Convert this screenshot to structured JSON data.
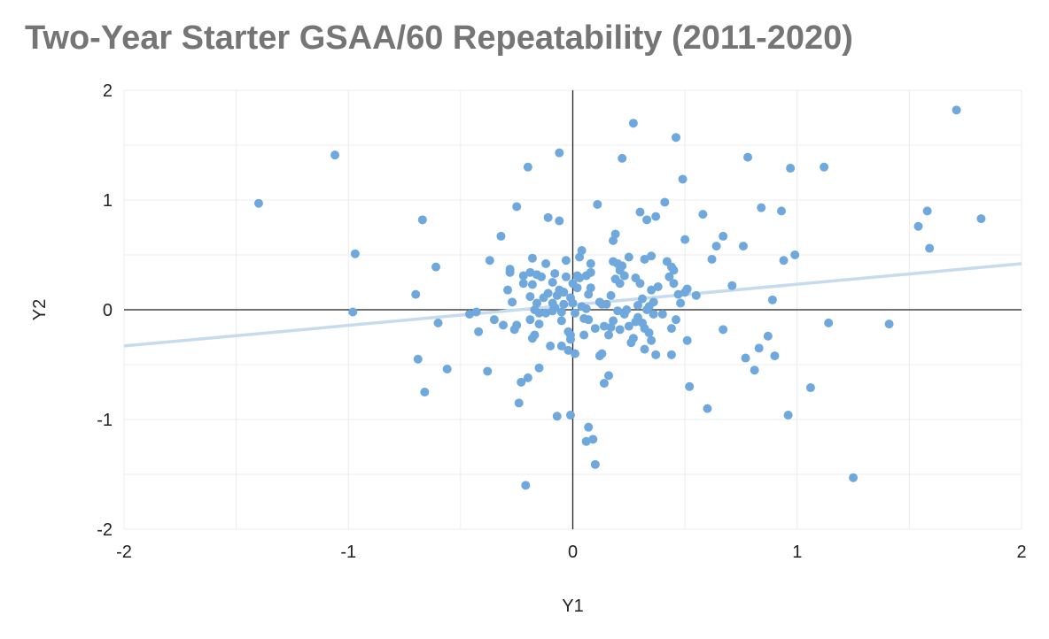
{
  "chart_data": {
    "type": "scatter",
    "title": "Two-Year Starter GSAA/60 Repeatability (2011-2020)",
    "xlabel": "Y1",
    "ylabel": "Y2",
    "xlim": [
      -2,
      2
    ],
    "ylim": [
      -2,
      2
    ],
    "x_ticks": [
      "-2",
      "-1",
      "0",
      "1",
      "2"
    ],
    "y_ticks": [
      "2",
      "1",
      "0",
      "-1",
      "-2"
    ],
    "grid": true,
    "legend": "none",
    "point_color": "#6fa8dc",
    "trendline_color": "#c6dbee",
    "trendline": {
      "x": [
        -2,
        2
      ],
      "y": [
        -0.33,
        0.42
      ]
    },
    "points": [
      [
        -1.4,
        0.97
      ],
      [
        -1.06,
        1.41
      ],
      [
        -0.97,
        0.51
      ],
      [
        -0.98,
        -0.02
      ],
      [
        -0.7,
        0.14
      ],
      [
        -0.69,
        -0.45
      ],
      [
        -0.67,
        0.82
      ],
      [
        -0.66,
        -0.75
      ],
      [
        -0.61,
        0.39
      ],
      [
        -0.6,
        -0.12
      ],
      [
        -0.56,
        -0.54
      ],
      [
        -0.46,
        -0.04
      ],
      [
        -0.43,
        -0.02
      ],
      [
        -0.42,
        -0.2
      ],
      [
        -0.38,
        -0.56
      ],
      [
        -0.37,
        0.45
      ],
      [
        -0.35,
        -0.09
      ],
      [
        -0.32,
        0.67
      ],
      [
        -0.31,
        -0.14
      ],
      [
        -0.29,
        0.18
      ],
      [
        -0.28,
        0.37
      ],
      [
        -0.28,
        0.34
      ],
      [
        -0.27,
        0.07
      ],
      [
        -0.26,
        -0.18
      ],
      [
        -0.25,
        0.94
      ],
      [
        -0.25,
        -0.14
      ],
      [
        -0.24,
        -0.85
      ],
      [
        -0.23,
        -0.66
      ],
      [
        -0.22,
        0.24
      ],
      [
        -0.22,
        0.31
      ],
      [
        -0.21,
        -1.6
      ],
      [
        -0.2,
        1.3
      ],
      [
        -0.2,
        -0.62
      ],
      [
        -0.19,
        0.12
      ],
      [
        -0.19,
        0.34
      ],
      [
        -0.19,
        -0.09
      ],
      [
        -0.18,
        0.47
      ],
      [
        -0.18,
        0.23
      ],
      [
        -0.18,
        -0.26
      ],
      [
        -0.17,
        -0.23
      ],
      [
        -0.17,
        0.0
      ],
      [
        -0.16,
        0.32
      ],
      [
        -0.16,
        0.06
      ],
      [
        -0.15,
        -0.03
      ],
      [
        -0.15,
        -0.13
      ],
      [
        -0.15,
        -0.53
      ],
      [
        -0.14,
        0.3
      ],
      [
        -0.13,
        0.11
      ],
      [
        -0.12,
        -0.03
      ],
      [
        -0.12,
        0.42
      ],
      [
        -0.11,
        0.84
      ],
      [
        -0.11,
        0.15
      ],
      [
        -0.1,
        -0.33
      ],
      [
        -0.09,
        0.25
      ],
      [
        -0.09,
        0.06
      ],
      [
        -0.09,
        -0.01
      ],
      [
        -0.08,
        0.02
      ],
      [
        -0.08,
        0.33
      ],
      [
        -0.07,
        0.13
      ],
      [
        -0.07,
        -0.97
      ],
      [
        -0.06,
        0.81
      ],
      [
        -0.06,
        1.43
      ],
      [
        -0.06,
        0.18
      ],
      [
        -0.05,
        -0.02
      ],
      [
        -0.05,
        -0.1
      ],
      [
        -0.05,
        -0.33
      ],
      [
        -0.04,
        0.05
      ],
      [
        -0.04,
        0.16
      ],
      [
        -0.03,
        0.45
      ],
      [
        -0.03,
        0.3
      ],
      [
        -0.02,
        -0.2
      ],
      [
        -0.02,
        -0.37
      ],
      [
        -0.01,
        -0.23
      ],
      [
        -0.01,
        -0.27
      ],
      [
        -0.01,
        0.11
      ],
      [
        -0.01,
        -0.96
      ],
      [
        0.0,
        0.24
      ],
      [
        0.0,
        0.06
      ],
      [
        0.01,
        -0.4
      ],
      [
        0.01,
        -0.03
      ],
      [
        0.02,
        0.2
      ],
      [
        0.02,
        0.31
      ],
      [
        0.03,
        0.29
      ],
      [
        0.03,
        0.48
      ],
      [
        0.04,
        0.54
      ],
      [
        0.04,
        0.03
      ],
      [
        0.05,
        -0.08
      ],
      [
        0.05,
        -0.23
      ],
      [
        0.06,
        0.01
      ],
      [
        0.06,
        0.31
      ],
      [
        0.07,
        -0.09
      ],
      [
        0.07,
        0.14
      ],
      [
        0.08,
        0.2
      ],
      [
        0.08,
        0.34
      ],
      [
        0.06,
        -1.2
      ],
      [
        0.07,
        -1.07
      ],
      [
        0.08,
        0.42
      ],
      [
        0.09,
        -1.18
      ],
      [
        0.1,
        -1.41
      ],
      [
        0.1,
        -0.17
      ],
      [
        0.11,
        0.96
      ],
      [
        0.12,
        -0.42
      ],
      [
        0.12,
        0.07
      ],
      [
        0.13,
        0.05
      ],
      [
        0.13,
        -0.4
      ],
      [
        0.14,
        -0.15
      ],
      [
        0.14,
        -0.67
      ],
      [
        0.15,
        0.05
      ],
      [
        0.16,
        -0.23
      ],
      [
        0.16,
        -0.6
      ],
      [
        0.17,
        0.13
      ],
      [
        0.17,
        -0.16
      ],
      [
        0.18,
        -0.1
      ],
      [
        0.18,
        0.44
      ],
      [
        0.18,
        0.63
      ],
      [
        0.19,
        0.28
      ],
      [
        0.19,
        0.69
      ],
      [
        0.2,
        0.42
      ],
      [
        0.2,
        -0.01
      ],
      [
        0.21,
        0.36
      ],
      [
        0.21,
        0.24
      ],
      [
        0.21,
        -0.18
      ],
      [
        0.22,
        1.38
      ],
      [
        0.22,
        0.4
      ],
      [
        0.23,
        0.31
      ],
      [
        0.23,
        -0.04
      ],
      [
        0.24,
        0.0
      ],
      [
        0.25,
        -0.15
      ],
      [
        0.25,
        0.48
      ],
      [
        0.26,
        -0.3
      ],
      [
        0.27,
        1.7
      ],
      [
        0.27,
        -0.26
      ],
      [
        0.28,
        0.29
      ],
      [
        0.28,
        -0.11
      ],
      [
        0.29,
        -0.07
      ],
      [
        0.29,
        0.04
      ],
      [
        0.3,
        0.89
      ],
      [
        0.3,
        0.24
      ],
      [
        0.31,
        0.1
      ],
      [
        0.31,
        -0.12
      ],
      [
        0.32,
        -0.36
      ],
      [
        0.32,
        0.46
      ],
      [
        0.32,
        -0.17
      ],
      [
        0.33,
        0.82
      ],
      [
        0.33,
        0.0
      ],
      [
        0.34,
        -0.21
      ],
      [
        0.34,
        0.03
      ],
      [
        0.35,
        0.49
      ],
      [
        0.35,
        -0.28
      ],
      [
        0.35,
        0.18
      ],
      [
        0.36,
        0.07
      ],
      [
        0.36,
        -0.04
      ],
      [
        0.37,
        0.85
      ],
      [
        0.37,
        -0.41
      ],
      [
        0.38,
        0.21
      ],
      [
        0.4,
        -0.04
      ],
      [
        0.41,
        0.98
      ],
      [
        0.42,
        0.44
      ],
      [
        0.43,
        0.3
      ],
      [
        0.44,
        -0.41
      ],
      [
        0.44,
        0.39
      ],
      [
        0.44,
        -0.17
      ],
      [
        0.45,
        0.24
      ],
      [
        0.45,
        0.36
      ],
      [
        0.46,
        -0.09
      ],
      [
        0.46,
        1.57
      ],
      [
        0.47,
        0.14
      ],
      [
        0.48,
        0.06
      ],
      [
        0.49,
        1.19
      ],
      [
        0.5,
        0.16
      ],
      [
        0.5,
        0.64
      ],
      [
        0.51,
        0.19
      ],
      [
        0.51,
        -0.28
      ],
      [
        0.52,
        -0.7
      ],
      [
        0.55,
        0.13
      ],
      [
        0.58,
        0.87
      ],
      [
        0.6,
        -0.9
      ],
      [
        0.62,
        0.46
      ],
      [
        0.64,
        0.58
      ],
      [
        0.67,
        0.67
      ],
      [
        0.67,
        -0.18
      ],
      [
        0.71,
        0.22
      ],
      [
        0.76,
        0.58
      ],
      [
        0.77,
        -0.44
      ],
      [
        0.78,
        1.39
      ],
      [
        0.81,
        -0.55
      ],
      [
        0.83,
        -0.35
      ],
      [
        0.84,
        0.93
      ],
      [
        0.87,
        -0.24
      ],
      [
        0.89,
        0.09
      ],
      [
        0.9,
        -0.42
      ],
      [
        0.93,
        0.9
      ],
      [
        0.94,
        0.45
      ],
      [
        0.96,
        -0.96
      ],
      [
        0.97,
        1.29
      ],
      [
        0.99,
        0.5
      ],
      [
        1.06,
        -0.71
      ],
      [
        1.12,
        1.3
      ],
      [
        1.14,
        -0.12
      ],
      [
        1.41,
        -0.13
      ],
      [
        1.54,
        0.76
      ],
      [
        1.58,
        0.9
      ],
      [
        1.59,
        0.56
      ],
      [
        1.71,
        1.82
      ],
      [
        1.82,
        0.83
      ],
      [
        1.25,
        -1.53
      ]
    ]
  }
}
